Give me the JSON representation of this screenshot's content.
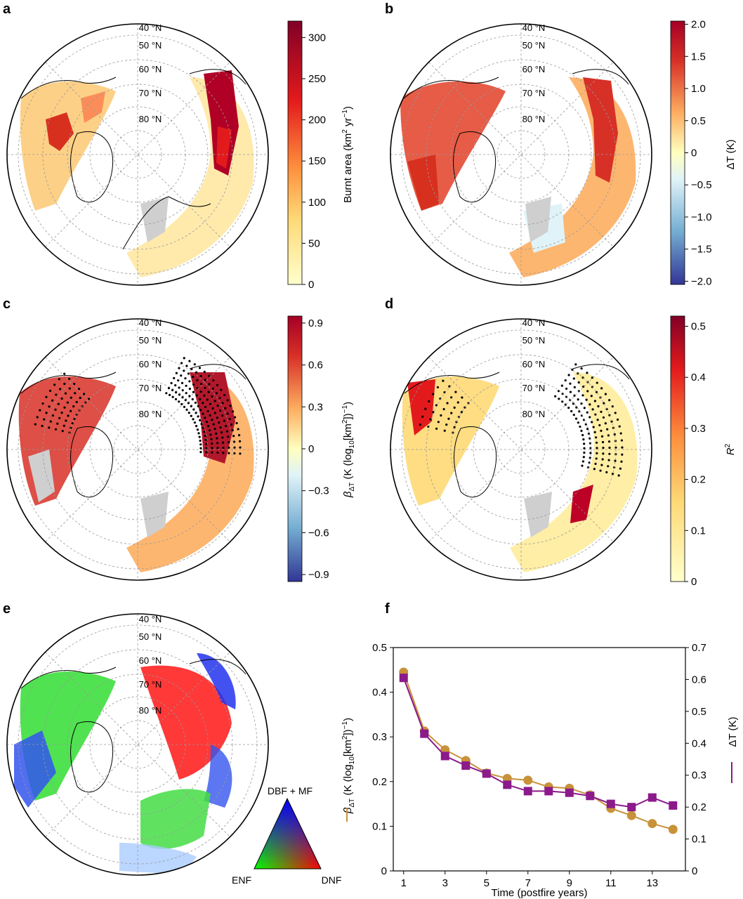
{
  "panels": [
    {
      "letter": "a"
    },
    {
      "letter": "b"
    },
    {
      "letter": "c"
    },
    {
      "letter": "d"
    },
    {
      "letter": "e"
    },
    {
      "letter": "f"
    }
  ],
  "lat_labels": [
    "40 °N",
    "50 °N",
    "60 °N",
    "70 °N",
    "80 °N"
  ],
  "colorbars": {
    "a": {
      "ticks": [
        "300",
        "250",
        "200",
        "150",
        "100",
        "50",
        "0"
      ]
    },
    "b": {
      "label": "ΔT (K)",
      "ticks": [
        "2.0",
        "1.5",
        "1.0",
        "0.5",
        "0",
        "−0.5",
        "−1.0",
        "−1.5",
        "−2.0"
      ]
    },
    "c": {
      "ticks": [
        "0.9",
        "0.6",
        "0.3",
        "0",
        "−0.3",
        "−0.6",
        "−0.9"
      ]
    },
    "d": {
      "ticks": [
        "0.5",
        "0.4",
        "0.3",
        "0.2",
        "0.1",
        "0"
      ]
    }
  },
  "ternary": {
    "top": "DBF + MF",
    "left": "ENF",
    "right": "DNF"
  },
  "chart_data": {
    "type": "line",
    "xlabel": "Time (postfire years)",
    "x": [
      1,
      2,
      3,
      4,
      5,
      6,
      7,
      8,
      9,
      10,
      11,
      12,
      13,
      14
    ],
    "xticks": [
      "1",
      "3",
      "5",
      "7",
      "9",
      "11",
      "13"
    ],
    "xlim": [
      0.5,
      14.6
    ],
    "ylim_left": [
      0,
      0.5
    ],
    "ylim_right": [
      0,
      0.7
    ],
    "yticks_left": [
      "0",
      "0.1",
      "0.2",
      "0.3",
      "0.4",
      "0.5"
    ],
    "yticks_right": [
      "0",
      "0.1",
      "0.2",
      "0.3",
      "0.4",
      "0.5",
      "0.6",
      "0.7"
    ],
    "ylabel_right": "ΔT (K)",
    "grid": false,
    "series": [
      {
        "axis": "left",
        "marker": "circle",
        "color": "#c8923a",
        "values": [
          0.445,
          0.313,
          0.271,
          0.247,
          0.219,
          0.207,
          0.203,
          0.188,
          0.185,
          0.17,
          0.14,
          0.124,
          0.106,
          0.093
        ]
      },
      {
        "axis": "right",
        "marker": "square",
        "color": "#8b1a8b",
        "values": [
          0.605,
          0.43,
          0.36,
          0.33,
          0.305,
          0.27,
          0.25,
          0.25,
          0.245,
          0.235,
          0.21,
          0.2,
          0.23,
          0.205
        ]
      }
    ]
  }
}
